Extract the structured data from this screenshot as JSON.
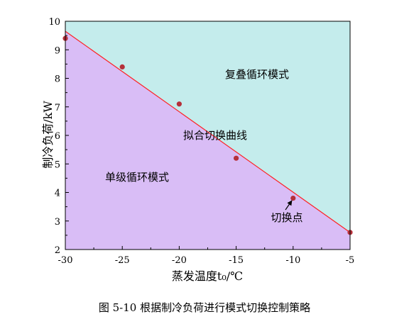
{
  "chart_data": {
    "type": "scatter",
    "xlabel": "蒸发温度t₀/℃",
    "ylabel": "制冷负荷/kW",
    "xlim": [
      -30,
      -5
    ],
    "ylim": [
      2,
      10
    ],
    "xticks": [
      "-30",
      "-25",
      "-20",
      "-15",
      "-10",
      "-5"
    ],
    "yticks": [
      "2",
      "3",
      "4",
      "5",
      "6",
      "7",
      "8",
      "9",
      "10"
    ],
    "series": [
      {
        "x": [
          -30,
          -25,
          -20,
          -15,
          -10,
          -5
        ],
        "y": [
          9.4,
          8.4,
          7.1,
          5.2,
          3.8,
          2.6
        ],
        "color": "#b5303a"
      }
    ],
    "fit_line": {
      "x": [
        -30,
        -5
      ],
      "y": [
        9.65,
        2.6
      ],
      "color": "#ff2020"
    },
    "regions": {
      "upper": {
        "label": "复叠循环模式",
        "color": "#c4ecec"
      },
      "lower": {
        "label": "单级循环模式",
        "color": "#d9bdf6"
      }
    },
    "annotations": {
      "fit_label": "拟合切换曲线",
      "switch_point": {
        "label": "切换点",
        "x": -10,
        "y": 3.8
      }
    },
    "grid": false,
    "legend": "none"
  },
  "caption": "图 5-10  根据制冷负荷进行模式切换控制策略"
}
